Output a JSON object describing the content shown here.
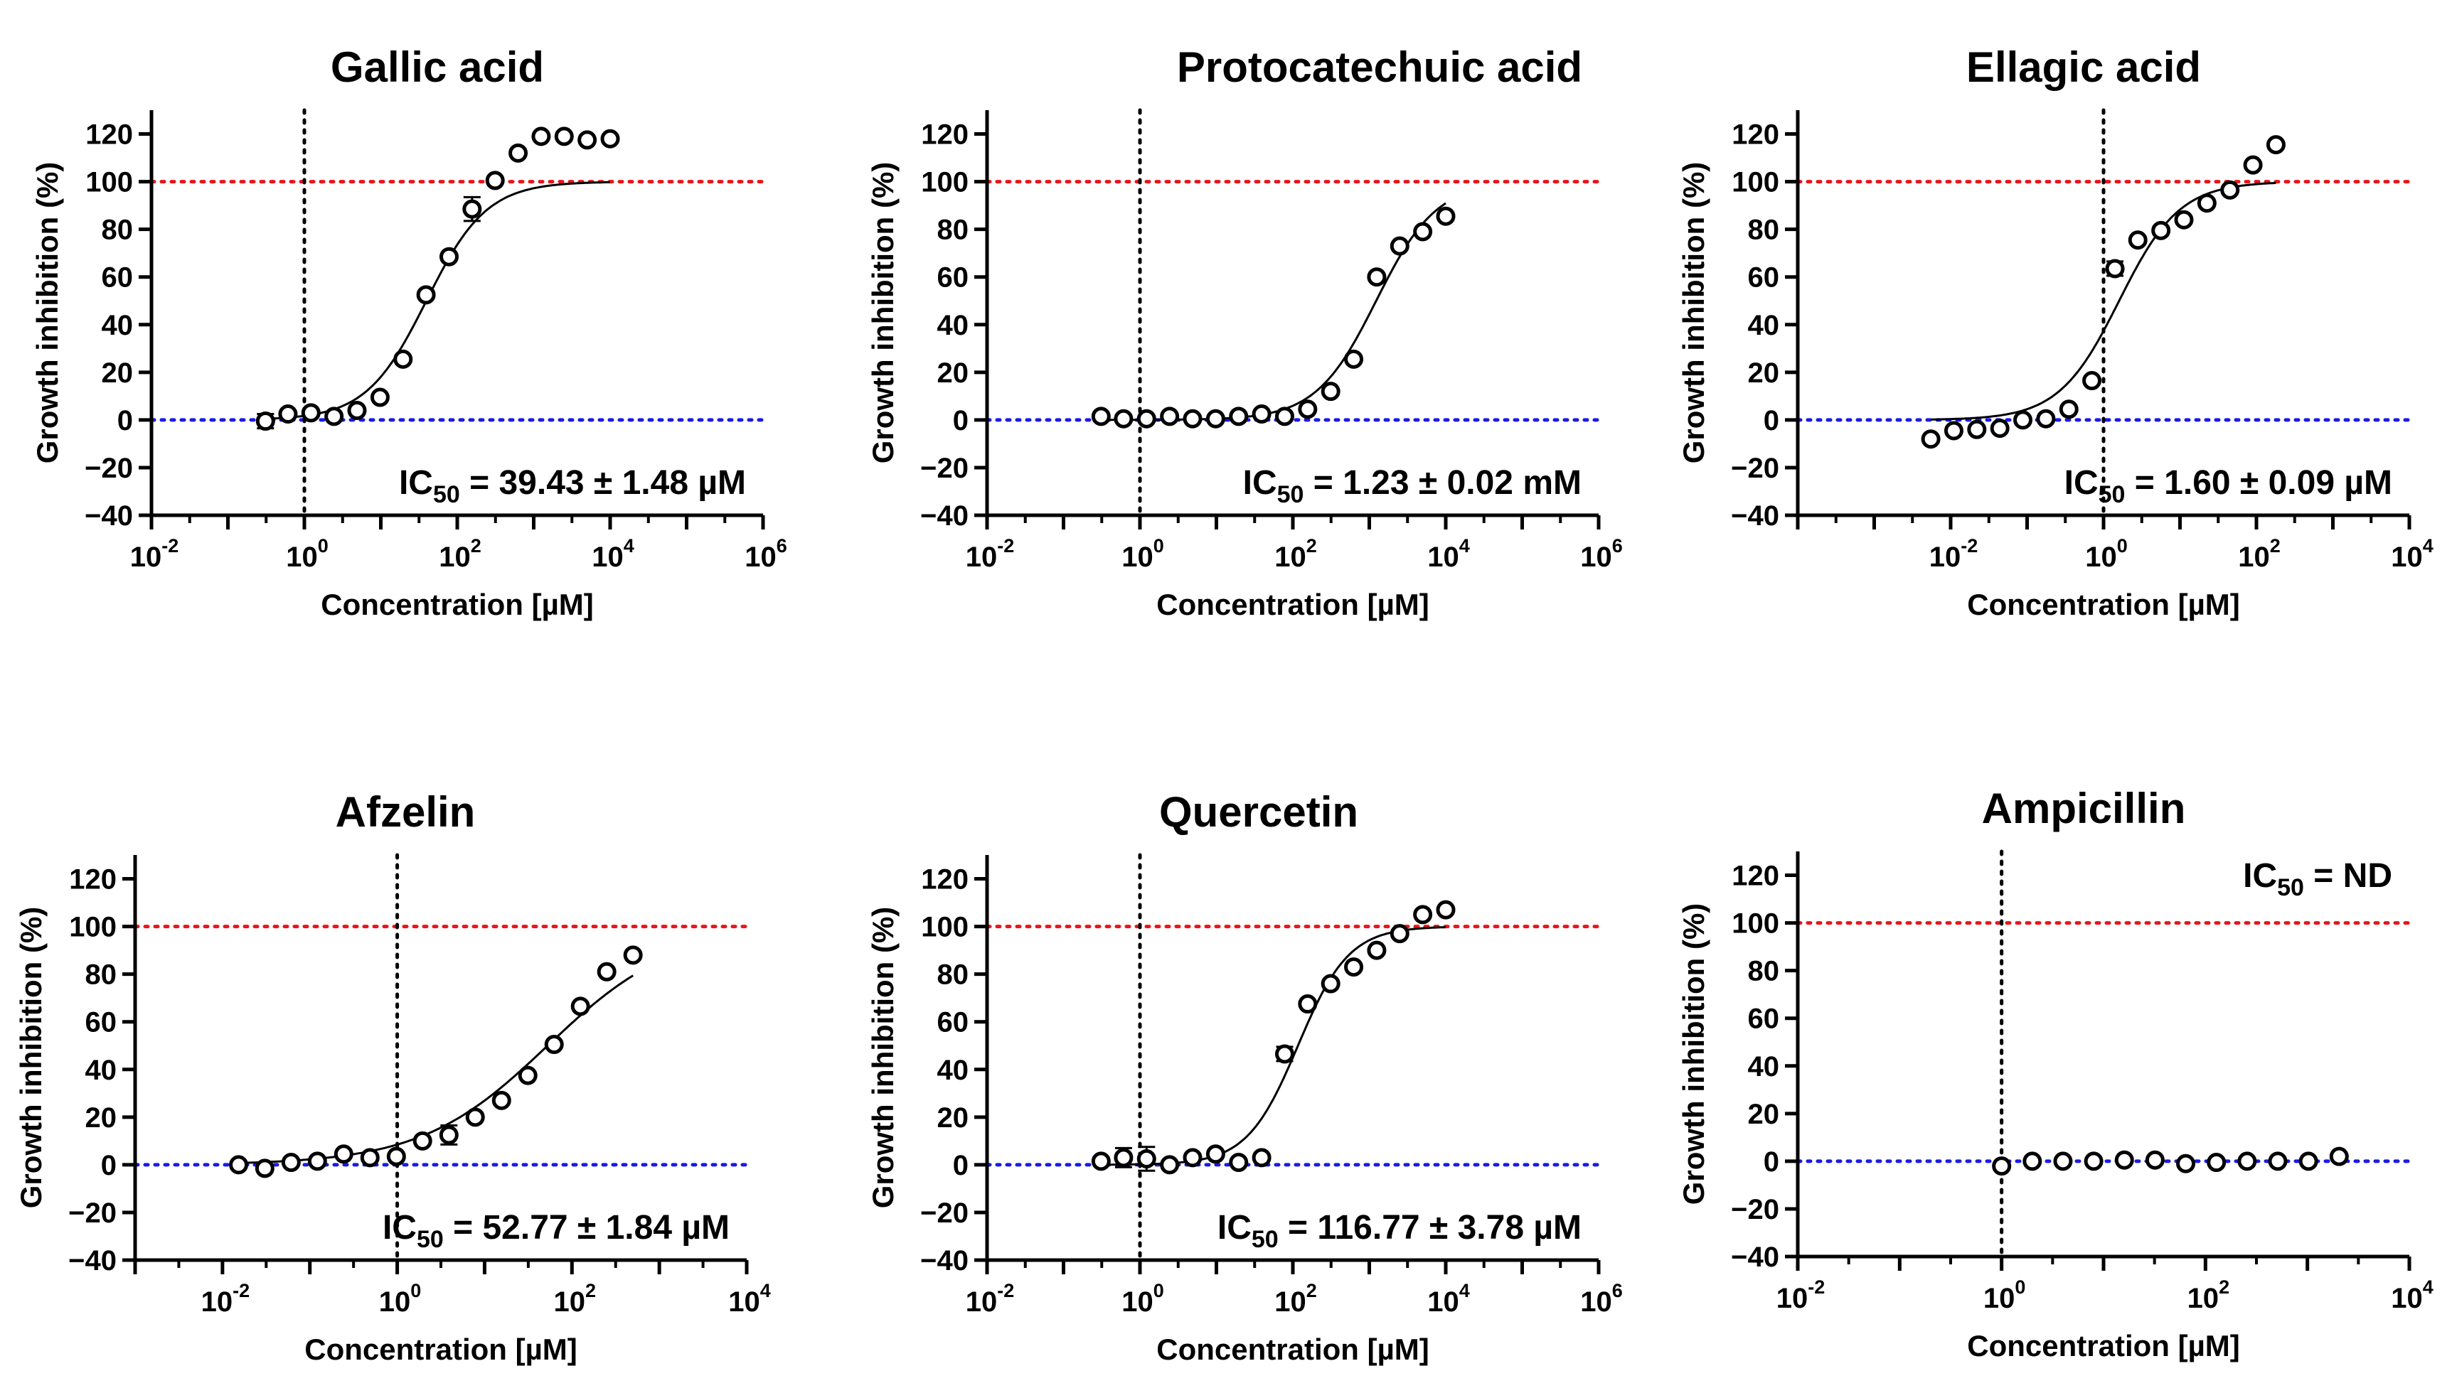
{
  "figure": {
    "ylabel": "Growth inhibition (%)",
    "xlabel": "Concentration [µM]"
  },
  "chart_data": [
    {
      "type": "scatter",
      "title": "Gallic acid",
      "xlabel": "Concentration [µM]",
      "ylabel": "Growth inhibition (%)",
      "xscale": "log10",
      "xlim_log10": [
        -2,
        6
      ],
      "xticks_log10": [
        -2,
        0,
        2,
        4,
        6
      ],
      "ylim": [
        -40,
        130
      ],
      "yticks": [
        -40,
        -20,
        0,
        20,
        40,
        60,
        80,
        100,
        120
      ],
      "reference_lines": {
        "y_top": 100,
        "y_bottom": 0,
        "x_vertical": 1,
        "top_color": "#e8151b",
        "bottom_color": "#1a1ae6",
        "vertical_color": "#000000"
      },
      "ic50_label": {
        "prefix": "IC",
        "sub": "50",
        "rest": " = 39.43 ± 1.48 µM",
        "position": "bottom-right"
      },
      "fit": {
        "bottom": 0,
        "top": 100,
        "log_ic50": 1.596,
        "hill": 1.1
      },
      "points": [
        {
          "x": 0.31,
          "y": -0.5,
          "err": 3
        },
        {
          "x": 0.61,
          "y": 2.5
        },
        {
          "x": 1.22,
          "y": 3
        },
        {
          "x": 2.44,
          "y": 1.5
        },
        {
          "x": 4.88,
          "y": 4
        },
        {
          "x": 9.77,
          "y": 9.5
        },
        {
          "x": 19.53,
          "y": 25.5
        },
        {
          "x": 39.06,
          "y": 52.5
        },
        {
          "x": 78.13,
          "y": 68.5
        },
        {
          "x": 156.25,
          "y": 88.5,
          "err": 5
        },
        {
          "x": 312.5,
          "y": 100.5
        },
        {
          "x": 625,
          "y": 112
        },
        {
          "x": 1250,
          "y": 119
        },
        {
          "x": 2500,
          "y": 119
        },
        {
          "x": 5000,
          "y": 117.5
        },
        {
          "x": 10000,
          "y": 118
        }
      ]
    },
    {
      "type": "scatter",
      "title": "Protocatechuic acid",
      "xlabel": "Concentration [µM]",
      "ylabel": "Growth inhibition (%)",
      "xscale": "log10",
      "xlim_log10": [
        -2,
        6
      ],
      "xticks_log10": [
        -2,
        0,
        2,
        4,
        6
      ],
      "ylim": [
        -40,
        130
      ],
      "yticks": [
        -40,
        -20,
        0,
        20,
        40,
        60,
        80,
        100,
        120
      ],
      "reference_lines": {
        "y_top": 100,
        "y_bottom": 0,
        "x_vertical": 1,
        "top_color": "#e8151b",
        "bottom_color": "#1a1ae6",
        "vertical_color": "#000000"
      },
      "ic50_label": {
        "prefix": "IC",
        "sub": "50",
        "rest": " = 1.23 ± 0.02 mM",
        "position": "bottom-right"
      },
      "fit": {
        "bottom": 0,
        "top": 100,
        "log_ic50": 3.09,
        "hill": 1.1
      },
      "points": [
        {
          "x": 0.31,
          "y": 1.5
        },
        {
          "x": 0.61,
          "y": 0.5
        },
        {
          "x": 1.22,
          "y": 0.5
        },
        {
          "x": 2.44,
          "y": 1.5
        },
        {
          "x": 4.88,
          "y": 0.5
        },
        {
          "x": 9.77,
          "y": 0.5
        },
        {
          "x": 19.53,
          "y": 1.5
        },
        {
          "x": 39.06,
          "y": 2.5
        },
        {
          "x": 78.13,
          "y": 1.5
        },
        {
          "x": 156.25,
          "y": 4.5
        },
        {
          "x": 312.5,
          "y": 12
        },
        {
          "x": 625,
          "y": 25.5
        },
        {
          "x": 1250,
          "y": 60
        },
        {
          "x": 2500,
          "y": 73
        },
        {
          "x": 5000,
          "y": 79
        },
        {
          "x": 10000,
          "y": 85.5
        }
      ]
    },
    {
      "type": "scatter",
      "title": "Ellagic acid",
      "xlabel": "Concentration [µM]",
      "ylabel": "Growth inhibition (%)",
      "xscale": "log10",
      "xlim_log10": [
        -4,
        4
      ],
      "xticks_log10": [
        -2,
        0,
        2,
        4
      ],
      "ylim": [
        -40,
        130
      ],
      "yticks": [
        -40,
        -20,
        0,
        20,
        40,
        60,
        80,
        100,
        120
      ],
      "reference_lines": {
        "y_top": 100,
        "y_bottom": 0,
        "x_vertical": 1,
        "top_color": "#e8151b",
        "bottom_color": "#1a1ae6",
        "vertical_color": "#000000"
      },
      "ic50_label": {
        "prefix": "IC",
        "sub": "50",
        "rest": " = 1.60 ± 0.09 µM",
        "position": "bottom-right"
      },
      "fit": {
        "bottom": 0,
        "top": 100,
        "log_ic50": 0.204,
        "hill": 1.1
      },
      "points": [
        {
          "x": 0.0055,
          "y": -8
        },
        {
          "x": 0.011,
          "y": -4.5
        },
        {
          "x": 0.022,
          "y": -4
        },
        {
          "x": 0.044,
          "y": -3.5
        },
        {
          "x": 0.088,
          "y": 0
        },
        {
          "x": 0.176,
          "y": 0.5
        },
        {
          "x": 0.352,
          "y": 4.5
        },
        {
          "x": 0.703,
          "y": 16.5
        },
        {
          "x": 1.41,
          "y": 63.5,
          "err": 3
        },
        {
          "x": 2.81,
          "y": 75.5
        },
        {
          "x": 5.63,
          "y": 79.5
        },
        {
          "x": 11.25,
          "y": 84
        },
        {
          "x": 22.5,
          "y": 91
        },
        {
          "x": 45,
          "y": 96.5
        },
        {
          "x": 90,
          "y": 107
        },
        {
          "x": 180,
          "y": 115.5
        }
      ]
    },
    {
      "type": "scatter",
      "title": "Afzelin",
      "xlabel": "Concentration [µM]",
      "ylabel": "Growth inhibition (%)",
      "xscale": "log10",
      "xlim_log10": [
        -3,
        4
      ],
      "xticks_log10": [
        -2,
        0,
        2,
        4
      ],
      "ylim": [
        -40,
        130
      ],
      "yticks": [
        -40,
        -20,
        0,
        20,
        40,
        60,
        80,
        100,
        120
      ],
      "reference_lines": {
        "y_top": 100,
        "y_bottom": 0,
        "x_vertical": 1,
        "top_color": "#e8151b",
        "bottom_color": "#1a1ae6",
        "vertical_color": "#000000"
      },
      "ic50_label": {
        "prefix": "IC",
        "sub": "50",
        "rest": " = 52.77 ± 1.84 µM",
        "position": "bottom-right"
      },
      "fit": {
        "bottom": 0,
        "top": 100,
        "log_ic50": 1.722,
        "hill": 0.6
      },
      "points": [
        {
          "x": 0.0153,
          "y": 0
        },
        {
          "x": 0.0305,
          "y": -1.5
        },
        {
          "x": 0.061,
          "y": 1
        },
        {
          "x": 0.122,
          "y": 1.5
        },
        {
          "x": 0.244,
          "y": 4.5
        },
        {
          "x": 0.488,
          "y": 3
        },
        {
          "x": 0.977,
          "y": 3.5
        },
        {
          "x": 1.95,
          "y": 10
        },
        {
          "x": 3.91,
          "y": 12.5,
          "err": 4
        },
        {
          "x": 7.81,
          "y": 20
        },
        {
          "x": 15.63,
          "y": 27
        },
        {
          "x": 31.25,
          "y": 37.5
        },
        {
          "x": 62.5,
          "y": 50.5
        },
        {
          "x": 125,
          "y": 66.5
        },
        {
          "x": 250,
          "y": 81
        },
        {
          "x": 500,
          "y": 88
        }
      ]
    },
    {
      "type": "scatter",
      "title": "Quercetin",
      "xlabel": "Concentration [µM]",
      "ylabel": "Growth inhibition (%)",
      "xscale": "log10",
      "xlim_log10": [
        -2,
        6
      ],
      "xticks_log10": [
        -2,
        0,
        2,
        4,
        6
      ],
      "ylim": [
        -40,
        130
      ],
      "yticks": [
        -40,
        -20,
        0,
        20,
        40,
        60,
        80,
        100,
        120
      ],
      "reference_lines": {
        "y_top": 100,
        "y_bottom": 0,
        "x_vertical": 1,
        "top_color": "#e8151b",
        "bottom_color": "#1a1ae6",
        "vertical_color": "#000000"
      },
      "ic50_label": {
        "prefix": "IC",
        "sub": "50",
        "rest": " = 116.77 ± 3.78 µM",
        "position": "bottom-right"
      },
      "fit": {
        "bottom": 0,
        "top": 100,
        "log_ic50": 2.067,
        "hill": 1.3
      },
      "points": [
        {
          "x": 0.31,
          "y": 1.5
        },
        {
          "x": 0.61,
          "y": 3,
          "err": 4
        },
        {
          "x": 1.22,
          "y": 2.5,
          "err": 5
        },
        {
          "x": 2.44,
          "y": 0
        },
        {
          "x": 4.88,
          "y": 3
        },
        {
          "x": 9.77,
          "y": 4.5
        },
        {
          "x": 19.53,
          "y": 1
        },
        {
          "x": 39.06,
          "y": 3
        },
        {
          "x": 78.13,
          "y": 46.5,
          "err": 3
        },
        {
          "x": 156.25,
          "y": 67.5
        },
        {
          "x": 312.5,
          "y": 76
        },
        {
          "x": 625,
          "y": 83
        },
        {
          "x": 1250,
          "y": 90
        },
        {
          "x": 2500,
          "y": 97
        },
        {
          "x": 5000,
          "y": 105
        },
        {
          "x": 10000,
          "y": 107
        }
      ]
    },
    {
      "type": "scatter",
      "title": "Ampicillin",
      "xlabel": "Concentration [µM]",
      "ylabel": "Growth inhibition (%)",
      "xscale": "log10",
      "xlim_log10": [
        -2,
        4
      ],
      "xticks_log10": [
        -2,
        0,
        2,
        4
      ],
      "ylim": [
        -40,
        130
      ],
      "yticks": [
        -40,
        -20,
        0,
        20,
        40,
        60,
        80,
        100,
        120
      ],
      "reference_lines": {
        "y_top": 100,
        "y_bottom": 0,
        "x_vertical": 1,
        "top_color": "#e8151b",
        "bottom_color": "#1a1ae6",
        "vertical_color": "#000000"
      },
      "ic50_label": {
        "prefix": "IC",
        "sub": "50",
        "rest": " = ND",
        "position": "top-right"
      },
      "fit": null,
      "points": [
        {
          "x": 1,
          "y": -2
        },
        {
          "x": 2,
          "y": 0
        },
        {
          "x": 4,
          "y": 0
        },
        {
          "x": 8,
          "y": 0
        },
        {
          "x": 16,
          "y": 0.5
        },
        {
          "x": 32,
          "y": 0.5
        },
        {
          "x": 64,
          "y": -1
        },
        {
          "x": 128,
          "y": -0.5
        },
        {
          "x": 256,
          "y": 0
        },
        {
          "x": 512,
          "y": 0
        },
        {
          "x": 1024,
          "y": 0
        },
        {
          "x": 2048,
          "y": 2
        }
      ]
    }
  ]
}
